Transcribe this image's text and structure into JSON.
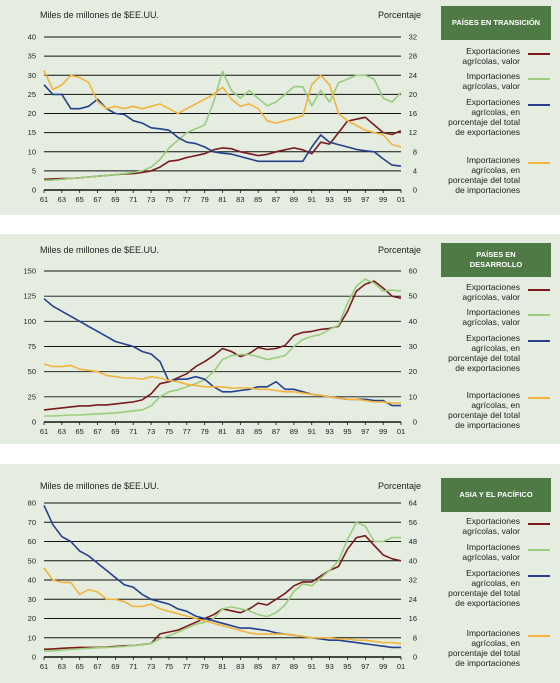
{
  "chart_data": [
    {
      "type": "line",
      "badge": "PAÍSES EN TRANSICIÓN",
      "ylabel_left": "Miles de millones de $EE.UU.",
      "ylabel_right": "Porcentaje",
      "x_ticks": [
        "61",
        "63",
        "65",
        "67",
        "69",
        "71",
        "73",
        "75",
        "77",
        "79",
        "81",
        "83",
        "85",
        "87",
        "89",
        "91",
        "93",
        "95",
        "97",
        "99",
        "01"
      ],
      "left_ticks": [
        "0",
        "5",
        "10",
        "15",
        "20",
        "25",
        "30",
        "35",
        "40"
      ],
      "right_ticks": [
        "0",
        "4",
        "8",
        "12",
        "16",
        "20",
        "24",
        "28",
        "32"
      ],
      "ylim_left": [
        0,
        40
      ],
      "ylim_right": [
        0,
        32
      ],
      "series": [
        {
          "name": "Exportaciones agrícolas, valor",
          "axis": "left",
          "color": "#7a1a1c",
          "values": [
            2.8,
            2.9,
            3,
            3,
            3.2,
            3.4,
            3.6,
            3.8,
            4,
            4.2,
            4.3,
            4.6,
            5,
            6,
            7.5,
            7.8,
            8.5,
            9,
            9.5,
            10.5,
            11,
            10.8,
            10,
            9.5,
            9,
            9.3,
            10,
            10.5,
            11,
            10.5,
            9.5,
            12.5,
            12,
            15,
            18,
            18.5,
            19,
            17,
            15,
            14.5,
            15.5
          ]
        },
        {
          "name": "Importaciones agrícolas, valor",
          "axis": "left",
          "color": "#9acd7e",
          "values": [
            2.5,
            2.6,
            2.8,
            3,
            3.2,
            3.4,
            3.6,
            3.8,
            4,
            4.3,
            4.6,
            5,
            6,
            8,
            11,
            13,
            15,
            16,
            17,
            23,
            31,
            26,
            24,
            26,
            24,
            22,
            23,
            25,
            27,
            27,
            22,
            26,
            23,
            28,
            29,
            30,
            30,
            29,
            24,
            23,
            25.5
          ]
        },
        {
          "name": "Exportaciones agrícolas, en porcentaje del total de exportaciones",
          "axis": "right",
          "color": "#25408f",
          "values": [
            22,
            20,
            20,
            17,
            17,
            17.5,
            19,
            17,
            16,
            15.8,
            14.5,
            14,
            13,
            12.8,
            12.5,
            11,
            10,
            9.7,
            9,
            8,
            7.7,
            7.5,
            7,
            6.5,
            6,
            6,
            6,
            6,
            6,
            6,
            9,
            11.5,
            10,
            9.5,
            9,
            8.5,
            8.2,
            8,
            6.5,
            5.2,
            5
          ]
        },
        {
          "name": "Importaciones agrícolas, en porcentaje del total de importaciones",
          "axis": "right",
          "color": "#f2b43d",
          "values": [
            25,
            21,
            22,
            24,
            23.5,
            22.5,
            18.5,
            17,
            17.5,
            17,
            17.5,
            17,
            17.5,
            18,
            17,
            16,
            17,
            18,
            19,
            20,
            21.5,
            19,
            17.5,
            18,
            17,
            14.5,
            14,
            14.5,
            15,
            15.5,
            22,
            24,
            22,
            16,
            14.5,
            13.5,
            12.5,
            12,
            11.5,
            9.5,
            9
          ]
        }
      ]
    },
    {
      "type": "line",
      "badge": "PAÍSES EN DESARROLLO",
      "ylabel_left": "Miles de millones de $EE.UU.",
      "ylabel_right": "Porcentaje",
      "x_ticks": [
        "61",
        "63",
        "65",
        "67",
        "69",
        "71",
        "73",
        "75",
        "77",
        "79",
        "81",
        "83",
        "85",
        "87",
        "89",
        "91",
        "93",
        "95",
        "97",
        "99",
        "01"
      ],
      "left_ticks": [
        "0",
        "25",
        "50",
        "75",
        "100",
        "125",
        "150"
      ],
      "right_ticks": [
        "0",
        "10",
        "20",
        "30",
        "40",
        "50",
        "60"
      ],
      "ylim_left": [
        0,
        150
      ],
      "ylim_right": [
        0,
        60
      ],
      "series": [
        {
          "name": "Exportaciones agrícolas, valor",
          "axis": "left",
          "color": "#7a1a1c",
          "values": [
            12,
            13,
            14,
            15,
            16,
            16,
            17,
            17,
            18,
            19,
            20,
            22,
            28,
            38,
            40,
            44,
            48,
            55,
            60,
            66,
            73,
            70,
            65,
            68,
            74,
            72,
            73,
            76,
            86,
            89,
            90,
            92,
            93,
            95,
            110,
            130,
            137,
            140,
            133,
            125,
            123
          ]
        },
        {
          "name": "Importaciones agrícolas, valor",
          "axis": "left",
          "color": "#9acd7e",
          "values": [
            6,
            6,
            6.5,
            7,
            7,
            7.5,
            8,
            8.5,
            9,
            10,
            11,
            12,
            16,
            25,
            30,
            32,
            35,
            38,
            42,
            50,
            62,
            66,
            67,
            67,
            65,
            62,
            64,
            66,
            75,
            82,
            85,
            87,
            92,
            96,
            118,
            135,
            142,
            138,
            130,
            131,
            130
          ]
        },
        {
          "name": "Exportaciones agrícolas, en porcentaje del total de exportaciones",
          "axis": "right",
          "color": "#25408f",
          "values": [
            49,
            46,
            44,
            42,
            40,
            38,
            36,
            34,
            32,
            31,
            30,
            28,
            27,
            24,
            16,
            17,
            17,
            18,
            17,
            14,
            12,
            12,
            12.5,
            13,
            14,
            14,
            16,
            13,
            13,
            12,
            11,
            10.5,
            10,
            9.5,
            9,
            9,
            9,
            8.5,
            8.5,
            6.5,
            6.5
          ]
        },
        {
          "name": "Importaciones agrícolas, en porcentaje del total de importaciones",
          "axis": "right",
          "color": "#f2b43d",
          "values": [
            23,
            22,
            22,
            22.5,
            21,
            20.5,
            20,
            18.5,
            18,
            17.5,
            17.5,
            17,
            18,
            17.5,
            16.5,
            16,
            15,
            14.5,
            14,
            14,
            14,
            13.5,
            13.5,
            13.5,
            13,
            13,
            12.5,
            12,
            12,
            11.5,
            11,
            10.5,
            10,
            9.5,
            9,
            9,
            8.5,
            8,
            8,
            7.5,
            7.5
          ]
        }
      ]
    },
    {
      "type": "line",
      "badge": "ASIA Y EL PACÍFICO",
      "ylabel_left": "Miles de millones de $EE.UU.",
      "ylabel_right": "Porcentaje",
      "x_ticks": [
        "61",
        "63",
        "65",
        "67",
        "69",
        "71",
        "73",
        "75",
        "77",
        "79",
        "81",
        "83",
        "85",
        "87",
        "89",
        "91",
        "93",
        "95",
        "97",
        "99",
        "01"
      ],
      "left_ticks": [
        "0",
        "10",
        "20",
        "30",
        "40",
        "50",
        "60",
        "70",
        "80"
      ],
      "right_ticks": [
        "0",
        "8",
        "16",
        "24",
        "32",
        "40",
        "48",
        "56",
        "64"
      ],
      "ylim_left": [
        0,
        80
      ],
      "ylim_right": [
        0,
        64
      ],
      "series": [
        {
          "name": "Exportaciones agrícolas, valor",
          "axis": "left",
          "color": "#7a1a1c",
          "values": [
            4,
            4.2,
            4.5,
            4.8,
            5,
            5,
            5,
            5.2,
            5.5,
            5.8,
            6,
            6.5,
            7,
            12,
            13,
            14,
            16,
            18,
            20,
            22,
            25,
            24,
            23,
            25,
            28,
            27,
            30,
            33,
            37,
            39,
            39,
            42,
            45,
            47,
            56,
            62,
            63,
            58,
            53,
            51,
            50
          ]
        },
        {
          "name": "Importaciones agrícolas, valor",
          "axis": "left",
          "color": "#9acd7e",
          "values": [
            3,
            3.2,
            3.5,
            4,
            4.2,
            4.5,
            4.8,
            5,
            5.2,
            5.5,
            6,
            6.5,
            7,
            9.5,
            11,
            13,
            15,
            17,
            18,
            20,
            25,
            26,
            25,
            24,
            22,
            21,
            23,
            27,
            34,
            38,
            37,
            41,
            45,
            50,
            61,
            70,
            68,
            60,
            60,
            62,
            62
          ]
        },
        {
          "name": "Exportaciones agrícolas, en porcentaje del total de exportaciones",
          "axis": "right",
          "color": "#25408f",
          "values": [
            63,
            55,
            50,
            48,
            44,
            42,
            39,
            36,
            33,
            30,
            29,
            26,
            24,
            23,
            22,
            20,
            19,
            17,
            16,
            15,
            14,
            13,
            12,
            12,
            11.5,
            11,
            10,
            9.5,
            9,
            8.5,
            8,
            7.5,
            7,
            7,
            6.5,
            6,
            5.5,
            5,
            4.5,
            4,
            4
          ]
        },
        {
          "name": "Importaciones agrícolas, en porcentaje del total de importaciones",
          "axis": "right",
          "color": "#f2b43d",
          "values": [
            37,
            32,
            31,
            31,
            26,
            28,
            27,
            24,
            24,
            23,
            21,
            21,
            22,
            20,
            19,
            18,
            17,
            16,
            15,
            14,
            13,
            12,
            11,
            10,
            9.5,
            9.5,
            9.5,
            9.5,
            9,
            8.5,
            8,
            8,
            8,
            7.5,
            7.5,
            7,
            7,
            6.5,
            6,
            6,
            5.5
          ]
        }
      ]
    }
  ]
}
